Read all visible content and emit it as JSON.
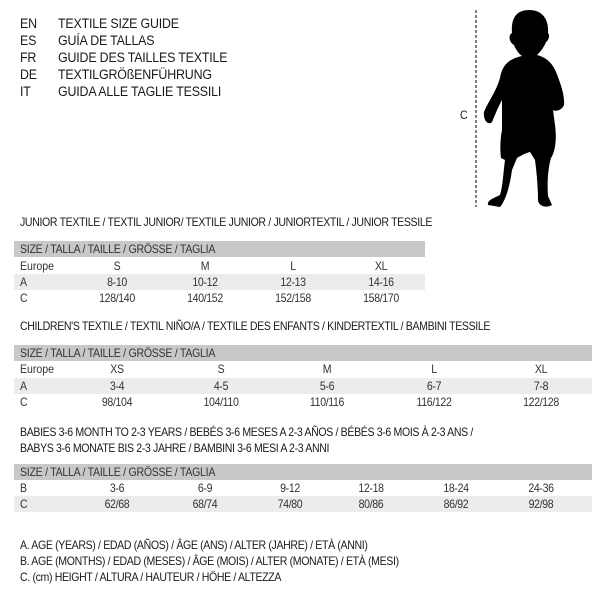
{
  "header": [
    {
      "code": "EN",
      "text": "TEXTILE SIZE GUIDE"
    },
    {
      "code": "ES",
      "text": "GUÍA DE TALLAS"
    },
    {
      "code": "FR",
      "text": "GUIDE DES TAILLES TEXTILE"
    },
    {
      "code": "DE",
      "text": "TEXTILGRÖßENFÜHRUNG"
    },
    {
      "code": "IT",
      "text": "GUIDA ALLE TAGLIE TESSILI"
    }
  ],
  "figure": {
    "icon": "baby-silhouette-icon",
    "measure_label": "C"
  },
  "size_header": "SIZE / TALLA / TAILLE / GRÖSSE / TAGLIA",
  "junior": {
    "title": "JUNIOR TEXTILE / TEXTIL JUNIOR/ TEXTILE JUNIOR / JUNIORTEXTIL / JUNIOR TESSILE",
    "rows": [
      {
        "label": "Europe",
        "values": [
          "S",
          "M",
          "L",
          "XL"
        ]
      },
      {
        "label": "A",
        "values": [
          "8-10",
          "10-12",
          "12-13",
          "14-16"
        ]
      },
      {
        "label": "C",
        "values": [
          "128/140",
          "140/152",
          "152/158",
          "158/170"
        ]
      }
    ]
  },
  "children": {
    "title": "CHILDREN'S TEXTILE / TEXTIL NIÑO/A / TEXTILE DES ENFANTS / KINDERTEXTIL / BAMBINI TESSILE",
    "rows": [
      {
        "label": "Europe",
        "values": [
          "XS",
          "S",
          "M",
          "L",
          "XL"
        ]
      },
      {
        "label": "A",
        "values": [
          "3-4",
          "4-5",
          "5-6",
          "6-7",
          "7-8"
        ]
      },
      {
        "label": "C",
        "values": [
          "98/104",
          "104/110",
          "110/116",
          "116/122",
          "122/128"
        ]
      }
    ]
  },
  "babies": {
    "title_line1": "BABIES 3-6 MONTH TO 2-3 YEARS / BEBÉS 3-6 MESES A 2-3 AÑOS / BÉBÉS 3-6 MOIS À 2-3 ANS /",
    "title_line2": "BABYS 3-6 MONATE BIS 2-3 JAHRE / BAMBINI 3-6 MESI A 2-3 ANNI",
    "rows": [
      {
        "label": "B",
        "values": [
          "3-6",
          "6-9",
          "9-12",
          "12-18",
          "18-24",
          "24-36"
        ]
      },
      {
        "label": "C",
        "values": [
          "62/68",
          "68/74",
          "74/80",
          "80/86",
          "86/92",
          "92/98"
        ]
      }
    ]
  },
  "legend": [
    "A. AGE (YEARS) / EDAD (AÑOS) / ÂGE (ANS) / ALTER (JAHRE) / ETÀ (ANNI)",
    "B. AGE (MONTHS) / EDAD (MESES) / ÂGE (MOIS) / ALTER (MONATE) / ETÀ (MESI)",
    "C. (cm) HEIGHT / ALTURA / HAUTEUR / HÖHE / ALTEZZA"
  ],
  "colors": {
    "header_bar": "#c8c8c8",
    "row_shade": "#ececec",
    "text": "#1a1a1a"
  }
}
